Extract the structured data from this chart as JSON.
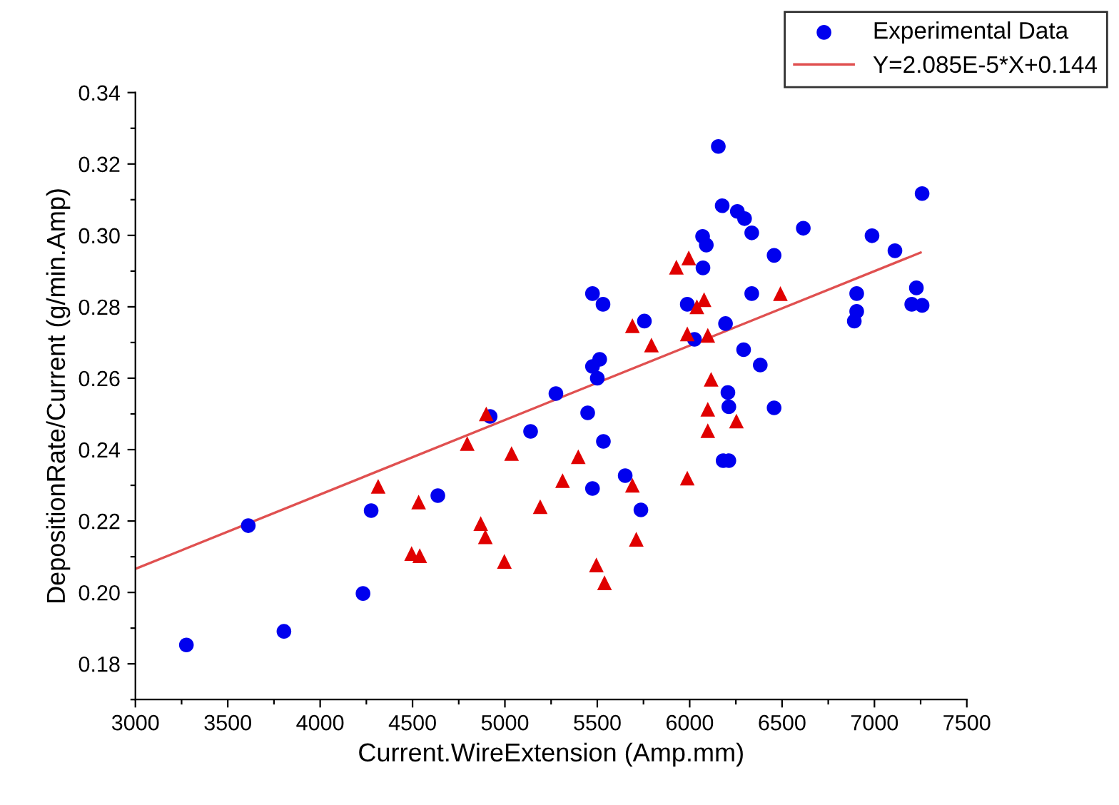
{
  "chart_data": {
    "type": "scatter",
    "xlabel": "Current.WireExtension (Amp.mm)",
    "ylabel": "DepositionRate/Current (g/min.Amp)",
    "xlim": [
      3000,
      7500
    ],
    "ylim": [
      0.17,
      0.34
    ],
    "xticks": [
      3000,
      {
        "value": 3250,
        "label": null
      },
      3500,
      {
        "value": 3750,
        "label": null
      },
      4000,
      {
        "value": 4250,
        "label": null
      },
      4500,
      {
        "value": 4750,
        "label": null
      },
      5000,
      {
        "value": 5250,
        "label": null
      },
      5500,
      {
        "value": 5750,
        "label": null
      },
      6000,
      {
        "value": 6250,
        "label": null
      },
      6500,
      {
        "value": 6750,
        "label": null
      },
      7000,
      {
        "value": 7250,
        "label": null
      },
      7500
    ],
    "yticks": [
      {
        "value": 0.17,
        "label": null
      },
      0.18,
      {
        "value": 0.19,
        "label": null
      },
      {
        "value": 0.2,
        "label": "0.20"
      },
      {
        "value": 0.21,
        "label": null
      },
      0.22,
      {
        "value": 0.23,
        "label": null
      },
      0.24,
      {
        "value": 0.25,
        "label": null
      },
      0.26,
      {
        "value": 0.27,
        "label": null
      },
      0.28,
      {
        "value": 0.29,
        "label": null
      },
      {
        "value": 0.3,
        "label": "0.30"
      },
      {
        "value": 0.31,
        "label": null
      },
      0.32,
      {
        "value": 0.33,
        "label": null
      },
      0.34
    ],
    "legend": "top right",
    "grid": false,
    "series": [
      {
        "name": "Experimental Data",
        "marker": "circle",
        "color": "#0000ee",
        "x": [
          3276,
          3611,
          3804,
          4232,
          4276,
          4637,
          4920,
          5139,
          5276,
          5474,
          5531,
          5448,
          5474,
          5513,
          5500,
          5533,
          5474,
          5651,
          5736,
          5755,
          6155,
          6176,
          6258,
          6297,
          6336,
          6615,
          6987,
          7111,
          7258,
          6070,
          6090,
          6072,
          5987,
          6026,
          6194,
          6336,
          6457,
          6292,
          6382,
          6207,
          6212,
          6457,
          6181,
          6212,
          6904,
          6904,
          6891,
          7227,
          7202,
          7258
        ],
        "values": [
          0.1853,
          0.2187,
          0.1891,
          0.1997,
          0.2229,
          0.2271,
          0.2493,
          0.2451,
          0.2557,
          0.2837,
          0.2807,
          0.2503,
          0.2633,
          0.2653,
          0.26,
          0.2423,
          0.2291,
          0.2327,
          0.2231,
          0.276,
          0.3249,
          0.3083,
          0.3067,
          0.3047,
          0.3007,
          0.302,
          0.2999,
          0.2957,
          0.3117,
          0.2997,
          0.2973,
          0.2909,
          0.2807,
          0.2709,
          0.2753,
          0.2837,
          0.2944,
          0.268,
          0.2637,
          0.256,
          0.252,
          0.2517,
          0.2369,
          0.2369,
          0.2837,
          0.2787,
          0.276,
          0.2853,
          0.2807,
          0.2804
        ]
      },
      {
        "marker": "triangle",
        "color": "#e00000",
        "x": [
          4314,
          4533,
          4495,
          4539,
          4796,
          4899,
          5036,
          4869,
          4894,
          4997,
          5191,
          5312,
          5397,
          5495,
          5539,
          5995,
          5928,
          6078,
          6039,
          5690,
          5793,
          5987,
          6098,
          6491,
          6116,
          6098,
          6098,
          6253,
          5987,
          5690,
          5711
        ],
        "values": [
          0.2297,
          0.2253,
          0.2109,
          0.2103,
          0.2417,
          0.25,
          0.2389,
          0.2193,
          0.2156,
          0.2087,
          0.224,
          0.2313,
          0.238,
          0.2077,
          0.2027,
          0.2937,
          0.2911,
          0.282,
          0.28,
          0.2747,
          0.2693,
          0.2724,
          0.272,
          0.2837,
          0.2597,
          0.2513,
          0.2453,
          0.248,
          0.232,
          0.23,
          0.2149
        ]
      },
      {
        "name": "Y=2.085E-5*X+0.144",
        "type": "line",
        "marker": "none",
        "line_style": "solid",
        "color": "#e05050",
        "x": [
          3000,
          7250
        ],
        "values": [
          0.2066,
          0.2952
        ]
      }
    ]
  }
}
